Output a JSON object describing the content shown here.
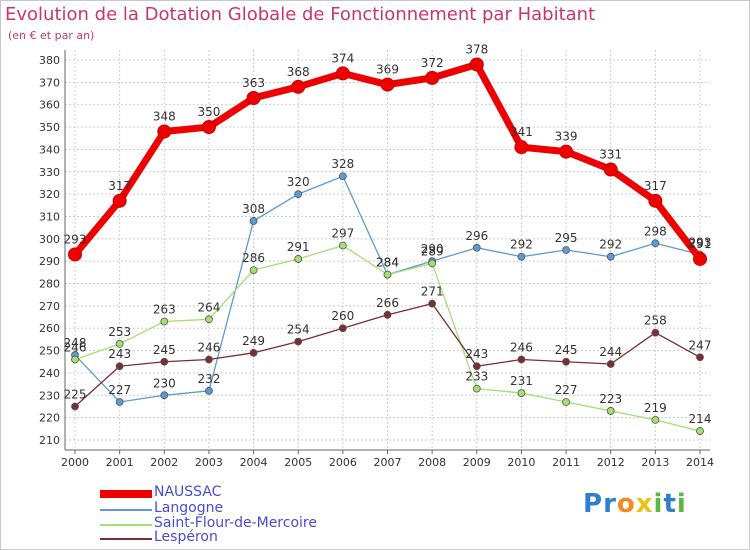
{
  "title": "Evolution de la Dotation Globale de Fonctionnement par Habitant",
  "subtitle": "(en € et par an)",
  "logo": {
    "letters": [
      "P",
      "r",
      "o",
      "x",
      "i",
      "t",
      "i"
    ],
    "colors": [
      "#2f7fd1",
      "#2f7fd1",
      "#f28a1e",
      "#e8c318",
      "#5ab93c",
      "#2f7fd1",
      "#5ab93c"
    ]
  },
  "chart_data": {
    "type": "line",
    "title": "Evolution de la Dotation Globale de Fonctionnement par Habitant",
    "subtitle": "(en € et par an)",
    "x": [
      "2000",
      "2001",
      "2002",
      "2003",
      "2004",
      "2005",
      "2006",
      "2007",
      "2008",
      "2009",
      "2010",
      "2011",
      "2012",
      "2013",
      "2014"
    ],
    "ylim": [
      210,
      380
    ],
    "yticks": [
      210,
      220,
      230,
      240,
      250,
      260,
      270,
      280,
      290,
      300,
      310,
      320,
      330,
      340,
      350,
      360,
      370,
      380
    ],
    "grid": true,
    "legend_position": "bottom-left",
    "series": [
      {
        "name": "NAUSSAC",
        "color": "#ee0000",
        "values": [
          293,
          317,
          348,
          350,
          363,
          368,
          374,
          369,
          372,
          378,
          341,
          339,
          331,
          317,
          291
        ],
        "labels": [
          "293",
          "317",
          "348",
          "350",
          "363",
          "368",
          "374",
          "369",
          "372",
          "378",
          "341",
          "339",
          "331",
          "317",
          "291"
        ]
      },
      {
        "name": "Langogne",
        "color": "#5b9bd5",
        "values": [
          248,
          227,
          230,
          232,
          308,
          320,
          328,
          284,
          290,
          296,
          292,
          295,
          292,
          298,
          293
        ],
        "labels": [
          "248",
          "227",
          "230",
          "232",
          "308",
          "320",
          "328",
          "284",
          "290",
          "296",
          "292",
          "295",
          "292",
          "298",
          "293"
        ]
      },
      {
        "name": "Saint-Flour-de-Mercoire",
        "color": "#a3e070",
        "values": [
          246,
          253,
          263,
          264,
          286,
          291,
          297,
          284,
          289,
          233,
          231,
          227,
          223,
          219,
          214
        ],
        "labels": [
          "246",
          "253",
          "263",
          "264",
          "286",
          "291",
          "297",
          "284",
          "289",
          "233",
          "231",
          "227",
          "223",
          "219",
          "214"
        ]
      },
      {
        "name": "Lespéron",
        "color": "#7b2d35",
        "values": [
          225,
          243,
          245,
          246,
          249,
          254,
          260,
          266,
          271,
          243,
          246,
          245,
          244,
          258,
          247
        ],
        "labels": [
          "225",
          "243",
          "245",
          "246",
          "249",
          "254",
          "260",
          "266",
          "271",
          "243",
          "246",
          "245",
          "244",
          "258",
          "247"
        ]
      }
    ]
  }
}
